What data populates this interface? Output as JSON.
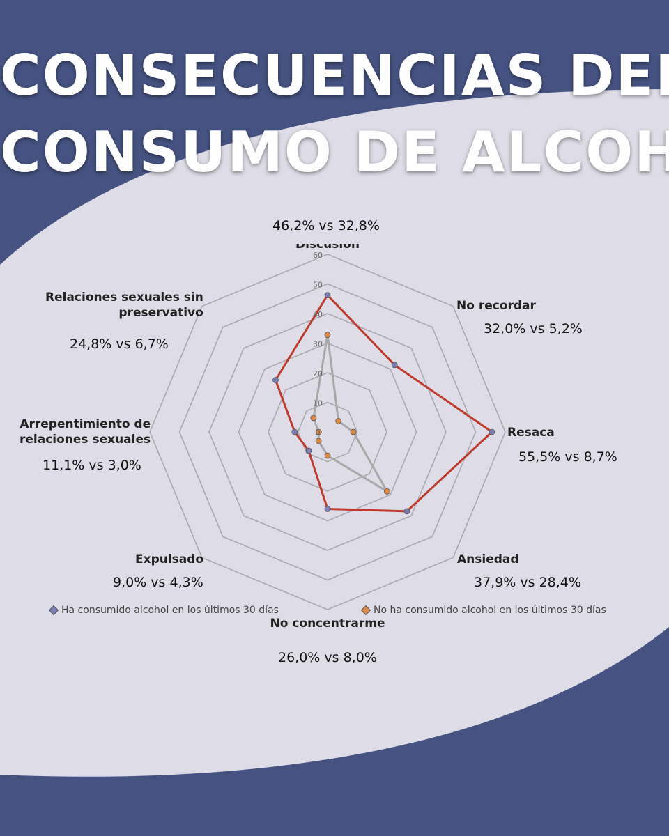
{
  "title": {
    "line1": "CONSECUENCIAS DEL",
    "line2": "CONSUMO DE ALCOHOL"
  },
  "colors": {
    "background": "#465382",
    "panel": "#dedde7",
    "series_consumed": "#c0392b",
    "series_not_consumed": "#a8a8a8",
    "marker_consumed": "#7b7fb6",
    "marker_not_consumed": "#e08a45"
  },
  "chart_data": {
    "type": "radar",
    "axes": [
      "Discusión",
      "No recordar",
      "Resaca",
      "Ansiedad",
      "No concentrarme",
      "Expulsado",
      "Arrepentimiento de relaciones sexuales",
      "Relaciones sexuales sin preservativo"
    ],
    "axis_labels": [
      [
        "Discusión"
      ],
      [
        "No recordar"
      ],
      [
        "Resaca"
      ],
      [
        "Ansiedad"
      ],
      [
        "No concentrarme"
      ],
      [
        "Expulsado"
      ],
      [
        "Arrepentimiento de",
        "relaciones sexuales"
      ],
      [
        "Relaciones sexuales sin",
        "preservativo"
      ]
    ],
    "comparisons": [
      "46,2% vs 32,8%",
      "32,0% vs 5,2%",
      "55,5% vs 8,7%",
      "37,9% vs 28,4%",
      "26,0% vs 8,0%",
      "9,0% vs 4,3%",
      "11,1% vs 3,0%",
      "24,8% vs 6,7%"
    ],
    "series": [
      {
        "name": "Ha consumido alcohol en los últimos 30 días",
        "values": [
          46.2,
          32.0,
          55.5,
          37.9,
          26.0,
          9.0,
          11.1,
          24.8
        ]
      },
      {
        "name": "No ha consumido alcohol en los últimos 30 días",
        "values": [
          32.8,
          5.2,
          8.7,
          28.4,
          8.0,
          4.3,
          3.0,
          6.7
        ]
      }
    ],
    "rmax": 60,
    "ticks": [
      "0",
      "10",
      "20",
      "30",
      "40",
      "50",
      "60"
    ],
    "grid": true,
    "legend_position": "bottom"
  }
}
